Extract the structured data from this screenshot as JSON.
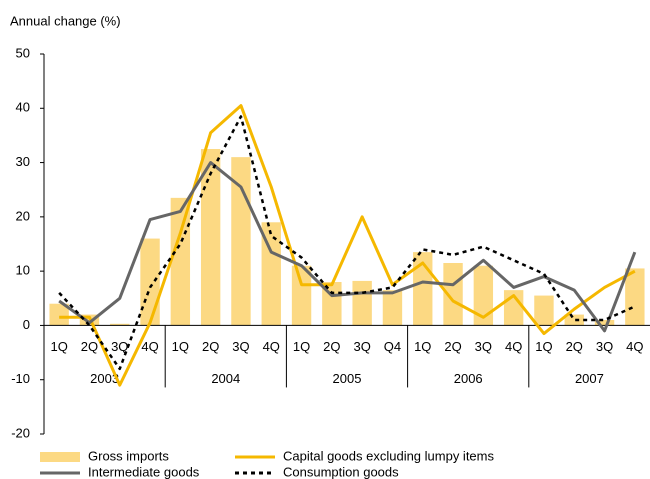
{
  "chart_data": {
    "type": "bar_line",
    "y_axis_label": "Annual change (%)",
    "categories": [
      "1Q",
      "2Q",
      "3Q",
      "4Q",
      "1Q",
      "2Q",
      "3Q",
      "4Q",
      "1Q",
      "2Q",
      "3Q",
      "Q4",
      "1Q",
      "2Q",
      "3Q",
      "4Q",
      "1Q",
      "2Q",
      "3Q",
      "4Q"
    ],
    "groups": [
      "2003",
      "2004",
      "2005",
      "2006",
      "2007"
    ],
    "series": [
      {
        "name": "Gross imports",
        "type": "bar",
        "color": "#fcd983",
        "values": [
          4,
          2,
          0.3,
          16,
          23.5,
          32.5,
          31,
          19,
          11,
          8,
          8.2,
          6.5,
          13.5,
          11.5,
          11,
          6.5,
          5.5,
          2,
          1,
          10.5
        ]
      },
      {
        "name": "Capital goods excluding lumpy items",
        "type": "line",
        "color": "#f5b800",
        "dash": "solid",
        "values": [
          1.5,
          1.5,
          -11,
          0.5,
          17,
          35.5,
          40.5,
          25.5,
          7.5,
          7.5,
          20,
          7.5,
          11.5,
          4.5,
          1.5,
          5.5,
          -1.5,
          3,
          7,
          10
        ]
      },
      {
        "name": "Intermediate goods",
        "type": "line",
        "color": "#666666",
        "dash": "solid",
        "values": [
          4.5,
          0.5,
          5,
          19.5,
          21,
          30,
          25.5,
          13.5,
          11,
          5.5,
          6,
          6,
          8,
          7.5,
          12,
          7,
          9,
          6.5,
          -1,
          13.5
        ]
      },
      {
        "name": "Consumption goods",
        "type": "line",
        "color": "#000000",
        "dash": "dotted",
        "values": [
          6,
          0,
          -8,
          7,
          15,
          28,
          38.5,
          16.5,
          12.5,
          6,
          6,
          7,
          14,
          13,
          14.5,
          12,
          9.5,
          1,
          1,
          3.5
        ]
      }
    ],
    "ylim": [
      -20,
      50
    ],
    "yticks": [
      -20,
      -10,
      0,
      10,
      20,
      30,
      40,
      50
    ],
    "grid": false
  }
}
